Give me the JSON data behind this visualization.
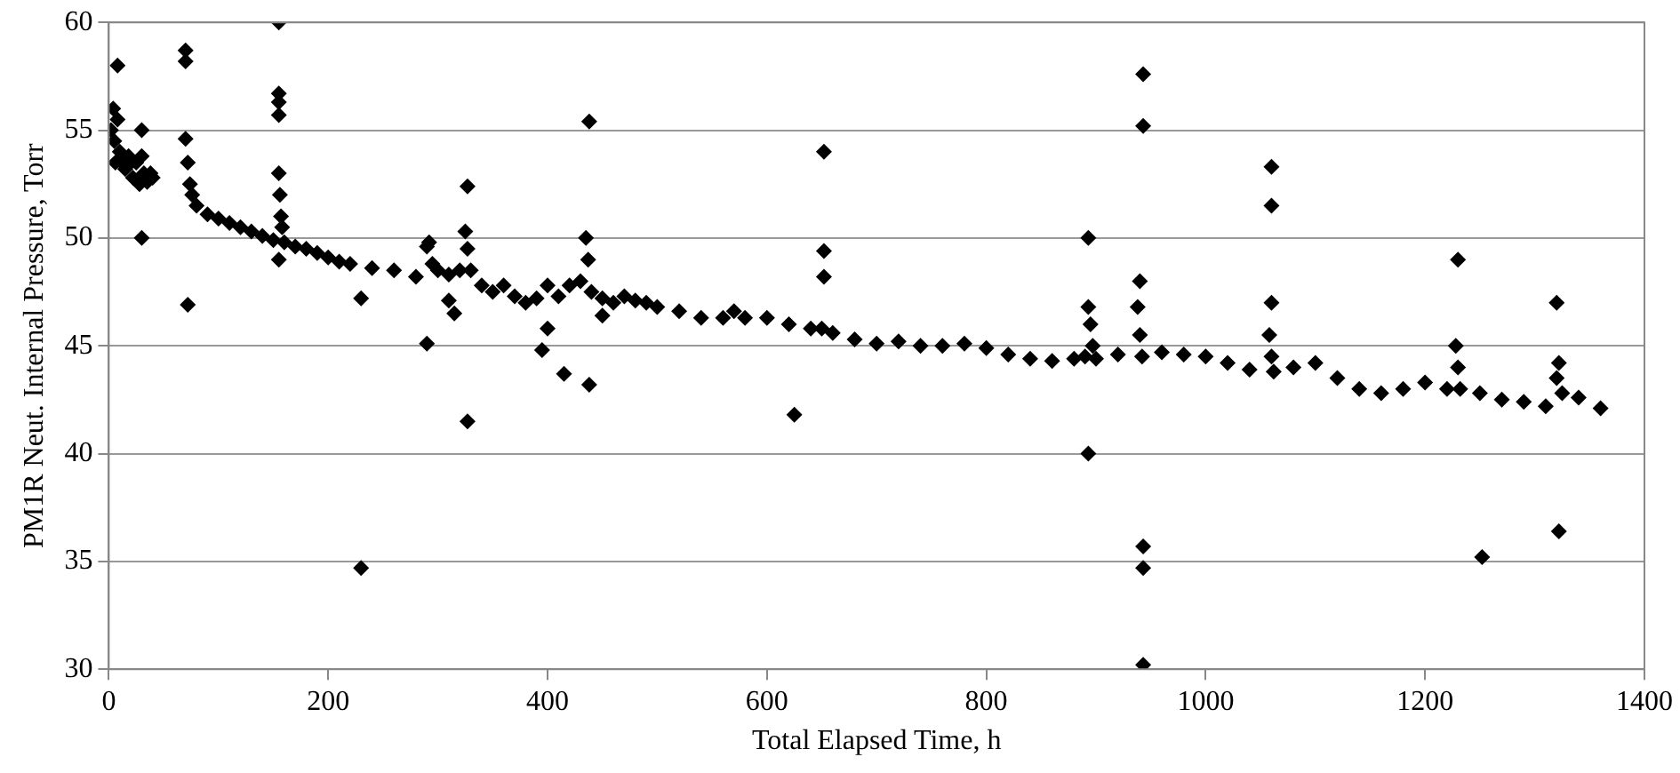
{
  "chart_data": {
    "type": "scatter",
    "xlabel": "Total Elapsed Time, h",
    "ylabel": "PM1R Neut. Internal Pressure, Torr",
    "xlim": [
      0,
      1400
    ],
    "ylim": [
      30,
      60
    ],
    "xticks": [
      0,
      200,
      400,
      600,
      800,
      1000,
      1200,
      1400
    ],
    "yticks": [
      30,
      35,
      40,
      45,
      50,
      55,
      60
    ],
    "grid": "y",
    "marker": "diamond",
    "legend": false,
    "series": [
      {
        "color": "#000000",
        "x": [
          2,
          4,
          5,
          6,
          8,
          10,
          12,
          15,
          18,
          20,
          22,
          25,
          28,
          30,
          32,
          35,
          38,
          40,
          70,
          72,
          74,
          76,
          80,
          90,
          100,
          110,
          120,
          130,
          140,
          150,
          155,
          156,
          157,
          158,
          160,
          170,
          180,
          190,
          200,
          210,
          220,
          240,
          260,
          280,
          290,
          292,
          295,
          300,
          310,
          320,
          325,
          327,
          330,
          340,
          350,
          360,
          370,
          380,
          390,
          400,
          410,
          420,
          430,
          435,
          437,
          440,
          450,
          460,
          470,
          480,
          490,
          500,
          520,
          540,
          560,
          570,
          580,
          600,
          620,
          640,
          650,
          660,
          680,
          700,
          720,
          740,
          760,
          780,
          800,
          820,
          840,
          860,
          880,
          890,
          893,
          895,
          897,
          900,
          920,
          938,
          940,
          942,
          960,
          980,
          1000,
          1020,
          1040,
          1058,
          1060,
          1062,
          1080,
          1100,
          1120,
          1140,
          1160,
          1180,
          1200,
          1220,
          1228,
          1230,
          1232,
          1250,
          1270,
          1290,
          1310,
          1320,
          1322,
          1325,
          1340,
          1360,
          8,
          70,
          70,
          72,
          30,
          30,
          155,
          155,
          155,
          155,
          155,
          230,
          230,
          290,
          310,
          315,
          327,
          327,
          395,
          400,
          415,
          438,
          438,
          450,
          625,
          652,
          652,
          652,
          893,
          893,
          943,
          943,
          940,
          943,
          943,
          943,
          1060,
          1060,
          1060,
          1230,
          1252,
          1320,
          1322
        ],
        "values": [
          55,
          56,
          54.5,
          53.5,
          55.5,
          54,
          53.5,
          53.2,
          53.8,
          53.5,
          52.8,
          53.5,
          52.5,
          53.8,
          53,
          52.6,
          53,
          52.8,
          54.6,
          53.5,
          52.5,
          52,
          51.5,
          51.1,
          50.9,
          50.7,
          50.5,
          50.3,
          50.1,
          49.9,
          53,
          52,
          51,
          50.5,
          49.8,
          49.6,
          49.5,
          49.3,
          49.1,
          48.9,
          48.8,
          48.6,
          48.5,
          48.2,
          49.6,
          49.8,
          48.8,
          48.5,
          48.3,
          48.5,
          50.3,
          49.5,
          48.5,
          47.8,
          47.5,
          47.8,
          47.3,
          47,
          47.2,
          47.8,
          47.3,
          47.8,
          48,
          50,
          49,
          47.5,
          47.2,
          47,
          47.3,
          47.1,
          47,
          46.8,
          46.6,
          46.3,
          46.3,
          46.6,
          46.3,
          46.3,
          46,
          45.8,
          45.8,
          45.6,
          45.3,
          45.1,
          45.2,
          45,
          45,
          45.1,
          44.9,
          44.6,
          44.4,
          44.3,
          44.4,
          44.5,
          46.8,
          46,
          45,
          44.4,
          44.6,
          46.8,
          45.5,
          44.5,
          44.7,
          44.6,
          44.5,
          44.2,
          43.9,
          45.5,
          44.5,
          43.8,
          44,
          44.2,
          43.5,
          43,
          42.8,
          43,
          43.3,
          43,
          45,
          44,
          43,
          42.8,
          42.5,
          42.4,
          42.2,
          43.5,
          44.2,
          42.8,
          42.6,
          42.1,
          58,
          58.7,
          58.2,
          46.9,
          55,
          50,
          60,
          56.7,
          56.3,
          55.7,
          49,
          47.2,
          34.7,
          45.1,
          47.1,
          46.5,
          52.4,
          41.5,
          44.8,
          45.8,
          43.7,
          55.4,
          43.2,
          46.4,
          41.8,
          54,
          49.4,
          48.2,
          50,
          40,
          57.6,
          55.2,
          48,
          35.7,
          34.7,
          30.2,
          53.3,
          51.5,
          47,
          49,
          35.2,
          47,
          36.4
        ]
      }
    ]
  }
}
